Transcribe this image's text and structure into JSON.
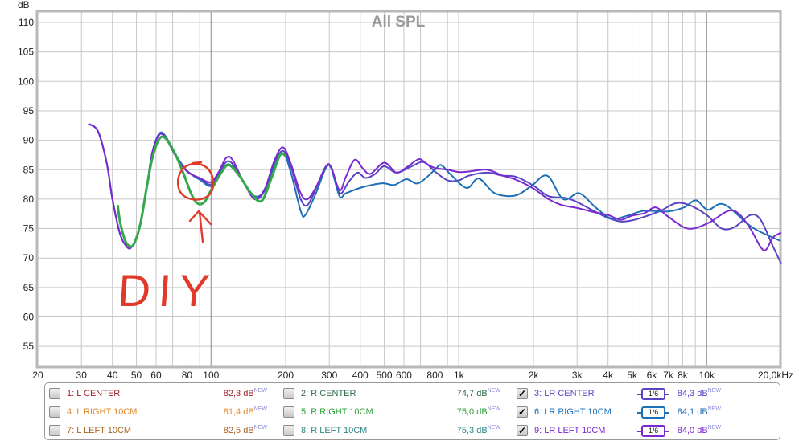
{
  "chart_data": {
    "type": "line",
    "title": "All SPL",
    "ylabel": "dB",
    "xlabel": "",
    "xscale": "log",
    "xlim": [
      20,
      20000
    ],
    "ylim": [
      52,
      112
    ],
    "grid": true,
    "y_ticks": [
      "110",
      "105",
      "100",
      "95",
      "90",
      "85",
      "80",
      "75",
      "70",
      "65",
      "60",
      "55"
    ],
    "y_tick_values": [
      110,
      105,
      100,
      95,
      90,
      85,
      80,
      75,
      70,
      65,
      60,
      55
    ],
    "x_ticks": [
      {
        "f": 20,
        "label": "20"
      },
      {
        "f": 30,
        "label": "30"
      },
      {
        "f": 40,
        "label": "40"
      },
      {
        "f": 50,
        "label": "50"
      },
      {
        "f": 60,
        "label": "60"
      },
      {
        "f": 80,
        "label": "80"
      },
      {
        "f": 100,
        "label": "100"
      },
      {
        "f": 200,
        "label": "200"
      },
      {
        "f": 300,
        "label": "300"
      },
      {
        "f": 400,
        "label": "400"
      },
      {
        "f": 500,
        "label": "500"
      },
      {
        "f": 600,
        "label": "600"
      },
      {
        "f": 800,
        "label": "800"
      },
      {
        "f": 1000,
        "label": "1k"
      },
      {
        "f": 2000,
        "label": "2k"
      },
      {
        "f": 3000,
        "label": "3k"
      },
      {
        "f": 4000,
        "label": "4k"
      },
      {
        "f": 5000,
        "label": "5k"
      },
      {
        "f": 6000,
        "label": "6k"
      },
      {
        "f": 7000,
        "label": "7k"
      },
      {
        "f": 8000,
        "label": "8k"
      },
      {
        "f": 10000,
        "label": "10k"
      },
      {
        "f": 20000,
        "label": "20,0kHz"
      }
    ],
    "series": [
      {
        "name": "3: LR CENTER",
        "color": "#5a44c4",
        "points": [
          [
            32,
            92.8
          ],
          [
            35,
            91.5
          ],
          [
            38,
            86
          ],
          [
            40,
            80
          ],
          [
            43,
            74
          ],
          [
            46,
            71.8
          ],
          [
            48,
            72
          ],
          [
            51,
            74.5
          ],
          [
            55,
            82
          ],
          [
            58,
            88
          ],
          [
            62,
            91
          ],
          [
            66,
            90.3
          ],
          [
            72,
            87.5
          ],
          [
            80,
            84.8
          ],
          [
            90,
            83.5
          ],
          [
            100,
            82.5
          ],
          [
            108,
            84.5
          ],
          [
            115,
            86.3
          ],
          [
            122,
            86
          ],
          [
            135,
            83
          ],
          [
            150,
            80
          ],
          [
            165,
            81.5
          ],
          [
            180,
            86
          ],
          [
            195,
            88.2
          ],
          [
            210,
            85.5
          ],
          [
            230,
            80
          ],
          [
            245,
            79
          ],
          [
            265,
            81.8
          ],
          [
            290,
            85.5
          ],
          [
            305,
            85.3
          ],
          [
            330,
            81
          ],
          [
            360,
            83
          ],
          [
            390,
            84.5
          ],
          [
            420,
            83.6
          ],
          [
            460,
            84.3
          ],
          [
            500,
            85.6
          ],
          [
            560,
            84.5
          ],
          [
            640,
            85.5
          ],
          [
            720,
            86.3
          ],
          [
            800,
            84.7
          ],
          [
            900,
            83.2
          ],
          [
            1000,
            83.2
          ],
          [
            1100,
            84
          ],
          [
            1300,
            84.5
          ],
          [
            1500,
            84
          ],
          [
            1700,
            83.8
          ],
          [
            2000,
            82.3
          ],
          [
            2300,
            80.5
          ],
          [
            2700,
            80.2
          ],
          [
            3000,
            79.5
          ],
          [
            3500,
            78
          ],
          [
            4000,
            76.8
          ],
          [
            4500,
            76.2
          ],
          [
            5000,
            76.4
          ],
          [
            5600,
            77
          ],
          [
            6500,
            78
          ],
          [
            7500,
            79.3
          ],
          [
            8500,
            79
          ],
          [
            10000,
            77.3
          ],
          [
            11500,
            75
          ],
          [
            13000,
            75.3
          ],
          [
            15000,
            77.3
          ],
          [
            16500,
            76.5
          ],
          [
            18500,
            72
          ],
          [
            20000,
            69
          ]
        ]
      },
      {
        "name": "6: LR RIGHT 10CM",
        "color": "#1e6fb6",
        "points": [
          [
            32,
            92.8
          ],
          [
            35,
            91.5
          ],
          [
            38,
            86
          ],
          [
            40,
            80
          ],
          [
            43,
            74
          ],
          [
            46,
            71.8
          ],
          [
            48,
            72
          ],
          [
            51,
            74.5
          ],
          [
            55,
            82
          ],
          [
            58,
            88
          ],
          [
            62,
            91.2
          ],
          [
            66,
            90.5
          ],
          [
            72,
            87.5
          ],
          [
            80,
            84.8
          ],
          [
            90,
            83.3
          ],
          [
            100,
            82.2
          ],
          [
            108,
            84
          ],
          [
            115,
            85.8
          ],
          [
            122,
            85.5
          ],
          [
            135,
            83
          ],
          [
            150,
            80.5
          ],
          [
            165,
            81.5
          ],
          [
            180,
            85.5
          ],
          [
            195,
            87.8
          ],
          [
            210,
            84.5
          ],
          [
            230,
            78
          ],
          [
            240,
            77.3
          ],
          [
            265,
            81
          ],
          [
            290,
            85.2
          ],
          [
            305,
            85.3
          ],
          [
            330,
            80.5
          ],
          [
            350,
            81
          ],
          [
            406,
            82
          ],
          [
            491,
            82.7
          ],
          [
            548,
            82.4
          ],
          [
            614,
            83.4
          ],
          [
            686,
            82.7
          ],
          [
            796,
            84.9
          ],
          [
            847,
            85.8
          ],
          [
            926,
            84.2
          ],
          [
            1075,
            81.9
          ],
          [
            1203,
            83.5
          ],
          [
            1397,
            81
          ],
          [
            1684,
            80.6
          ],
          [
            1957,
            82.2
          ],
          [
            2270,
            84
          ],
          [
            2638,
            80
          ],
          [
            3060,
            81
          ],
          [
            3560,
            78.6
          ],
          [
            4130,
            76.7
          ],
          [
            4800,
            77.2
          ],
          [
            5570,
            78
          ],
          [
            6970,
            77.9
          ],
          [
            8100,
            78.6
          ],
          [
            9060,
            79.8
          ],
          [
            10100,
            78.2
          ],
          [
            11760,
            79.1
          ],
          [
            15280,
            75.2
          ],
          [
            19860,
            72.9
          ]
        ]
      },
      {
        "name": "9: LR LEFT 10CM",
        "color": "#7a2ad0",
        "points": [
          [
            32,
            92.8
          ],
          [
            35,
            91.5
          ],
          [
            38,
            86
          ],
          [
            40,
            80
          ],
          [
            43,
            74
          ],
          [
            46,
            71.8
          ],
          [
            48,
            72
          ],
          [
            51,
            74.5
          ],
          [
            55,
            82
          ],
          [
            58,
            88
          ],
          [
            62,
            91
          ],
          [
            66,
            90.2
          ],
          [
            72,
            87.3
          ],
          [
            80,
            84.7
          ],
          [
            90,
            83.6
          ],
          [
            100,
            82.9
          ],
          [
            108,
            84.8
          ],
          [
            115,
            87
          ],
          [
            122,
            86.7
          ],
          [
            135,
            83
          ],
          [
            150,
            80
          ],
          [
            165,
            81.8
          ],
          [
            180,
            86.5
          ],
          [
            195,
            88.8
          ],
          [
            210,
            86
          ],
          [
            230,
            81
          ],
          [
            245,
            80
          ],
          [
            265,
            82
          ],
          [
            290,
            85.5
          ],
          [
            305,
            85.5
          ],
          [
            330,
            81.5
          ],
          [
            350,
            83.8
          ],
          [
            380,
            86.7
          ],
          [
            410,
            85.2
          ],
          [
            440,
            84.3
          ],
          [
            500,
            86.2
          ],
          [
            560,
            84.5
          ],
          [
            620,
            85.5
          ],
          [
            690,
            86.8
          ],
          [
            740,
            86
          ],
          [
            800,
            85.3
          ],
          [
            900,
            85
          ],
          [
            1000,
            84.6
          ],
          [
            1100,
            84.7
          ],
          [
            1300,
            85
          ],
          [
            1500,
            84
          ],
          [
            1700,
            83.3
          ],
          [
            2000,
            81.8
          ],
          [
            2300,
            80
          ],
          [
            2600,
            79
          ],
          [
            3000,
            78.5
          ],
          [
            3500,
            77.8
          ],
          [
            4000,
            77.3
          ],
          [
            4500,
            76.5
          ],
          [
            5000,
            77.2
          ],
          [
            5600,
            77.6
          ],
          [
            6230,
            78.6
          ],
          [
            7000,
            77
          ],
          [
            8400,
            75
          ],
          [
            10100,
            75.9
          ],
          [
            12200,
            78
          ],
          [
            13500,
            77.5
          ],
          [
            15000,
            75
          ],
          [
            17000,
            71.3
          ],
          [
            18500,
            73.5
          ],
          [
            20000,
            74.3
          ]
        ]
      },
      {
        "name": "DIY",
        "color": "#34a84a",
        "points": [
          [
            42,
            79
          ],
          [
            43,
            76
          ],
          [
            45,
            73
          ],
          [
            47,
            72
          ],
          [
            49,
            72.5
          ],
          [
            52,
            76
          ],
          [
            55,
            82
          ],
          [
            58,
            87
          ],
          [
            62,
            90.3
          ],
          [
            66,
            90.2
          ],
          [
            72,
            87.5
          ],
          [
            78,
            84
          ],
          [
            83,
            81
          ],
          [
            88,
            79.3
          ],
          [
            94,
            79.5
          ],
          [
            100,
            81.5
          ],
          [
            110,
            84.5
          ],
          [
            118,
            85.8
          ],
          [
            130,
            84
          ],
          [
            145,
            81
          ],
          [
            160,
            79.7
          ],
          [
            175,
            83.5
          ],
          [
            190,
            87.5
          ],
          [
            200,
            87.3
          ]
        ]
      }
    ],
    "annotations": [
      "DIY"
    ]
  },
  "legend": [
    {
      "n": "1: L CENTER",
      "v": "82,3 dB",
      "checked": false,
      "color": "#a3232b"
    },
    {
      "n": "2: R CENTER",
      "v": "74,7 dB",
      "checked": false,
      "color": "#2f6b4a"
    },
    {
      "n": "3: LR CENTER",
      "v": "84,3 dB",
      "checked": true,
      "color": "#5a44c4",
      "filter": "1/6"
    },
    {
      "n": "4: L RIGHT 10CM",
      "v": "81,4 dB",
      "checked": false,
      "color": "#de8a30"
    },
    {
      "n": "5: R RIGHT 10CM",
      "v": "75,0 dB",
      "checked": false,
      "color": "#2f9f3a"
    },
    {
      "n": "6: LR RIGHT 10CM",
      "v": "84,1 dB",
      "checked": true,
      "color": "#1e6fb6",
      "filter": "1/6"
    },
    {
      "n": "7: L LEFT 10CM",
      "v": "82,5 dB",
      "checked": false,
      "color": "#a6631f"
    },
    {
      "n": "8: R LEFT 10CM",
      "v": "75,3 dB",
      "checked": false,
      "color": "#2d8585"
    },
    {
      "n": "9: LR LEFT 10CM",
      "v": "84,0 dB",
      "checked": true,
      "color": "#7a2ad0",
      "filter": "1/6"
    }
  ],
  "new_badge": "NEW",
  "check_mark": "✓"
}
